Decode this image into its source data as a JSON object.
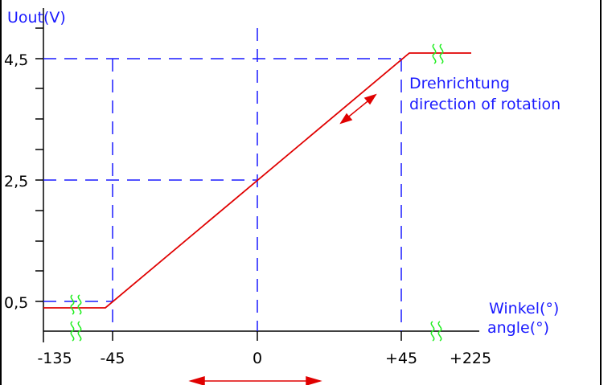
{
  "colors": {
    "axis": "#000000",
    "guide": "#1a1aff",
    "curve": "#e00000",
    "break_mark": "#22ee22",
    "label_text": "#1a1aff"
  },
  "y_axis_label": "Uout(V)",
  "x_axis_label": [
    "Winkel(°)",
    "angle(°)"
  ],
  "rotation_label": [
    "Drehrichtung",
    "direction of rotation"
  ],
  "y_tick_labels": [
    "4,5",
    "2,5",
    "0,5"
  ],
  "x_tick_labels": [
    "-135",
    "-45",
    "0",
    "+45",
    "+225"
  ],
  "chart_data": {
    "type": "line",
    "xlabel": "Winkel(°) / angle(°)",
    "ylabel": "Uout(V)",
    "x_ticks": [
      "-135",
      "-45",
      "0",
      "+45",
      "+225"
    ],
    "y_ticks": [
      0.5,
      2.5,
      4.5
    ],
    "axis_breaks": true,
    "series": [
      {
        "x": [
          -135,
          -45,
          45,
          225
        ],
        "y": [
          0.5,
          0.5,
          4.5,
          4.5
        ]
      }
    ],
    "guides": {
      "vertical": [
        -45,
        0,
        45
      ],
      "horizontal": [
        0.5,
        2.5,
        4.5
      ]
    },
    "annotations": [
      "Drehrichtung",
      "direction of rotation"
    ]
  }
}
